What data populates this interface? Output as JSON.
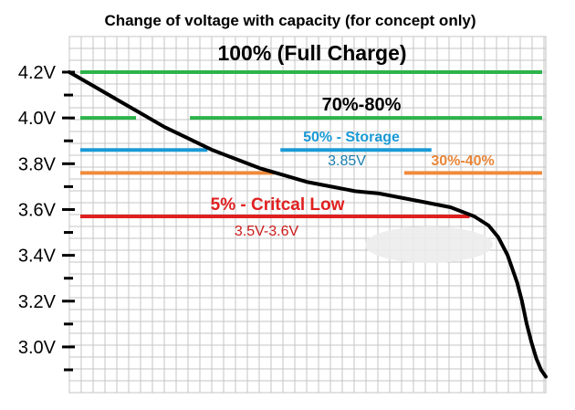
{
  "chart_data": {
    "type": "line",
    "title": "Change of voltage with capacity (for concept only)",
    "xlabel": "",
    "ylabel": "",
    "ylim": [
      2.86,
      4.26
    ],
    "y_ticks": [
      4.2,
      4.0,
      3.8,
      3.6,
      3.4,
      3.2,
      3.0
    ],
    "y_tick_labels": [
      "4.2V",
      "4.0V",
      "3.8V",
      "3.6V",
      "3.4V",
      "3.2V",
      "3.0V"
    ],
    "grid": true,
    "x_range_percent_discharged": [
      0,
      100
    ],
    "series": [
      {
        "color": "#000000",
        "x": [
          0,
          5,
          10,
          15,
          20,
          25,
          30,
          35,
          40,
          45,
          50,
          55,
          60,
          65,
          70,
          75,
          80,
          85,
          88,
          90,
          92,
          94,
          95,
          96,
          97,
          98,
          99,
          100
        ],
        "y": [
          4.2,
          4.14,
          4.08,
          4.02,
          3.96,
          3.91,
          3.86,
          3.82,
          3.78,
          3.75,
          3.72,
          3.7,
          3.68,
          3.67,
          3.65,
          3.63,
          3.61,
          3.57,
          3.53,
          3.48,
          3.4,
          3.28,
          3.2,
          3.1,
          3.02,
          2.95,
          2.9,
          2.87
        ]
      }
    ],
    "annotations": [
      {
        "id": "full",
        "text": "100% (Full Charge)",
        "color": "#000000"
      },
      {
        "id": "seventy",
        "text": "70%-80%",
        "color": "#000000"
      },
      {
        "id": "storage",
        "text": "50% - Storage",
        "color": "#1a9ad6"
      },
      {
        "id": "storage_value",
        "text": "3.85V",
        "color": "#1a7fb0"
      },
      {
        "id": "thirty",
        "text": "30%-40%",
        "color": "#e8863a"
      },
      {
        "id": "critical",
        "text": "5% - Critcal Low",
        "color": "#e02020"
      },
      {
        "id": "critical_value",
        "text": "3.5V-3.6V",
        "color": "#cc1a1a"
      }
    ],
    "bands": [
      {
        "level": "full",
        "y": 4.2,
        "color": "#2db34a",
        "segments": [
          [
            0,
            100
          ]
        ]
      },
      {
        "level": "seventy",
        "y": 4.0,
        "color": "#2db34a",
        "segments": [
          [
            0,
            14
          ],
          [
            23,
            100
          ]
        ]
      },
      {
        "level": "storage",
        "y": 3.86,
        "color": "#1a9ad6",
        "segments": [
          [
            0,
            29
          ],
          [
            42,
            76
          ]
        ]
      },
      {
        "level": "thirty",
        "y": 3.76,
        "color": "#f08a3a",
        "segments": [
          [
            0,
            43
          ],
          [
            68,
            100
          ]
        ]
      },
      {
        "level": "critical",
        "y": 3.57,
        "color": "#e02020",
        "segments": [
          [
            0,
            84
          ]
        ]
      }
    ]
  }
}
